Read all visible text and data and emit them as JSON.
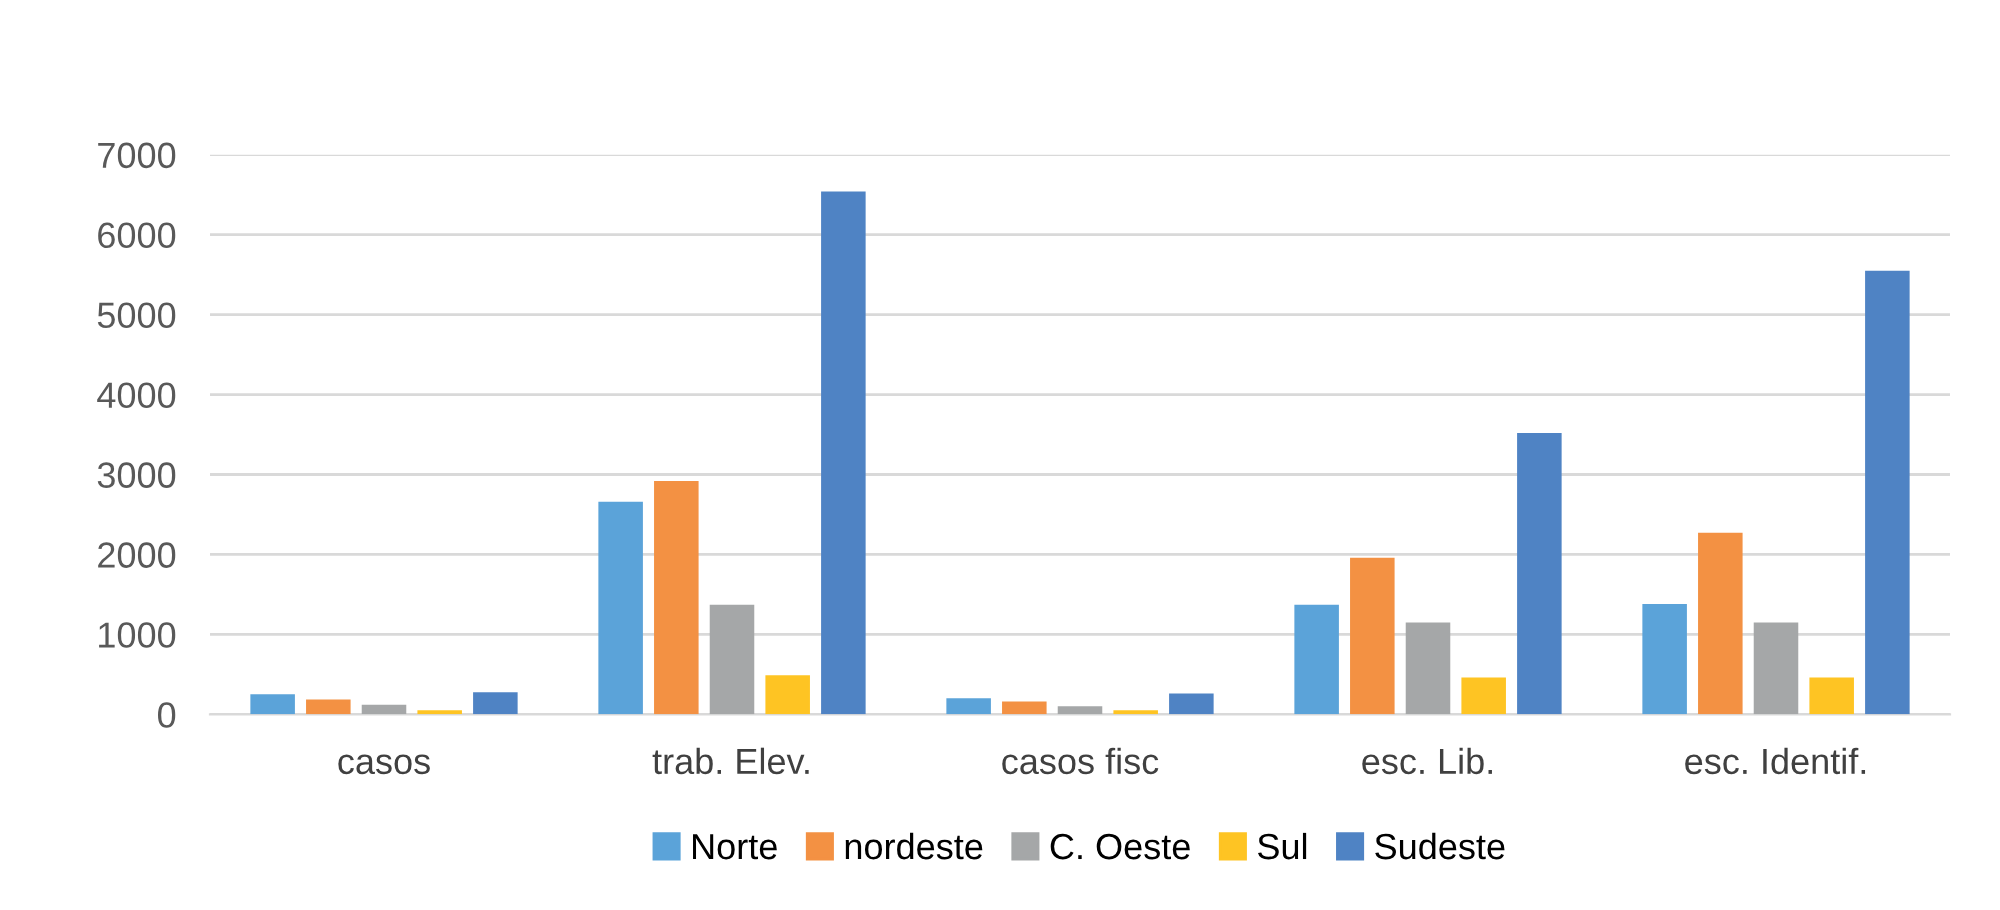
{
  "chart_data": {
    "type": "bar",
    "categories": [
      "casos",
      "trab. Elev.",
      "casos fisc",
      "esc. Lib.",
      "esc. Identif."
    ],
    "series": [
      {
        "name": "Norte",
        "color": "#5ba3d9",
        "values": [
          250,
          2660,
          200,
          1370,
          1380
        ]
      },
      {
        "name": "nordeste",
        "color": "#f39143",
        "values": [
          185,
          2920,
          160,
          1960,
          2270
        ]
      },
      {
        "name": "C. Oeste",
        "color": "#a5a7a8",
        "values": [
          120,
          1370,
          100,
          1150,
          1150
        ]
      },
      {
        "name": "Sul",
        "color": "#fec423",
        "values": [
          50,
          490,
          50,
          460,
          460
        ]
      },
      {
        "name": "Sudeste",
        "color": "#4f83c4",
        "values": [
          275,
          6540,
          260,
          3520,
          5550
        ]
      }
    ],
    "ylim": [
      0,
      7000
    ],
    "yticks": [
      0,
      1000,
      2000,
      3000,
      4000,
      5000,
      6000,
      7000
    ],
    "grid": "y",
    "legend": "bottom"
  }
}
